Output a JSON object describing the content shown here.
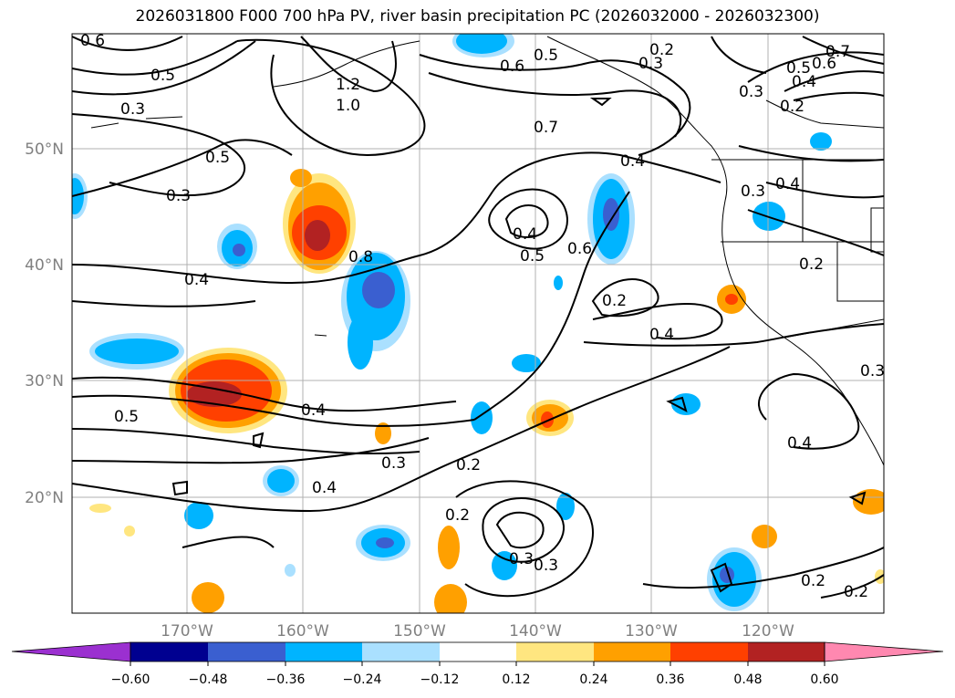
{
  "title": "2026031800 F000 700 hPa PV, river basin precipitation PC (2026032000 - 2026032300)",
  "lat_labels": [
    "50°N",
    "40°N",
    "30°N",
    "20°N"
  ],
  "lon_labels": [
    "170°W",
    "160°W",
    "150°W",
    "140°W",
    "130°W",
    "120°W"
  ],
  "colorbar": {
    "colors": [
      "#9b30d0",
      "#000090",
      "#3a5fd0",
      "#00b4ff",
      "#aae0ff",
      "#ffffff",
      "#ffe680",
      "#ffa000",
      "#ff4000",
      "#b22222",
      "#ff88b0"
    ],
    "ticks": [
      "−0.60",
      "−0.48",
      "−0.36",
      "−0.24",
      "−0.12",
      "0.12",
      "0.24",
      "0.36",
      "0.48",
      "0.60"
    ]
  },
  "contour_labels": [
    "0.6",
    "0.5",
    "0.3",
    "0.5",
    "0.3",
    "0.4",
    "1.2",
    "1.0",
    "0.8",
    "0.6",
    "0.5",
    "0.2",
    "0.3",
    "0.7",
    "0.6",
    "0.5",
    "0.4",
    "0.3",
    "0.2",
    "0.7",
    "0.4",
    "0.4",
    "0.5",
    "0.6",
    "0.2",
    "0.4",
    "0.3",
    "0.4",
    "0.2",
    "0.5",
    "0.4",
    "0.3",
    "0.2",
    "0.4",
    "0.3",
    "0.2",
    "0.3",
    "0.4",
    "0.2",
    "0.2",
    "0.3"
  ]
}
